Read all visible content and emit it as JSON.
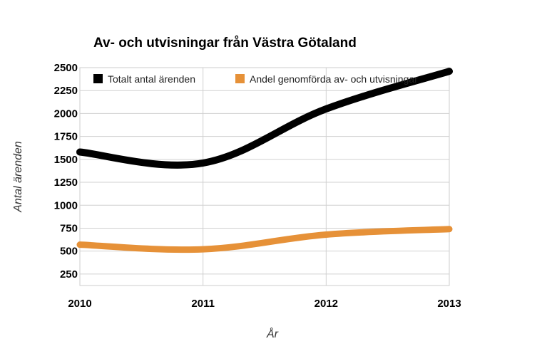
{
  "chart_data": {
    "type": "line",
    "title": "Av- och utvisningar från Västra Götaland",
    "xlabel": "År",
    "ylabel": "Antal ärenden",
    "x": [
      2010,
      2011,
      2012,
      2013
    ],
    "x_tick_labels": [
      "2010",
      "2011",
      "2012",
      "2013"
    ],
    "xlim": [
      2010,
      2013
    ],
    "ylim": [
      125,
      2500
    ],
    "y_ticks": [
      250,
      500,
      750,
      1000,
      1250,
      1500,
      1750,
      2000,
      2250,
      2500
    ],
    "y_tick_labels": [
      "250",
      "500",
      "750",
      "1000",
      "1250",
      "1500",
      "1750",
      "2000",
      "2250",
      "2500"
    ],
    "grid": true,
    "legend_position": "top-left",
    "series": [
      {
        "name": "Totalt antal ärenden",
        "values": [
          1580,
          1460,
          2050,
          2460
        ],
        "color": "#000000"
      },
      {
        "name": "Andel genomförda av- och utvisningar",
        "values": [
          570,
          520,
          680,
          740
        ],
        "color": "#e69138"
      }
    ]
  }
}
